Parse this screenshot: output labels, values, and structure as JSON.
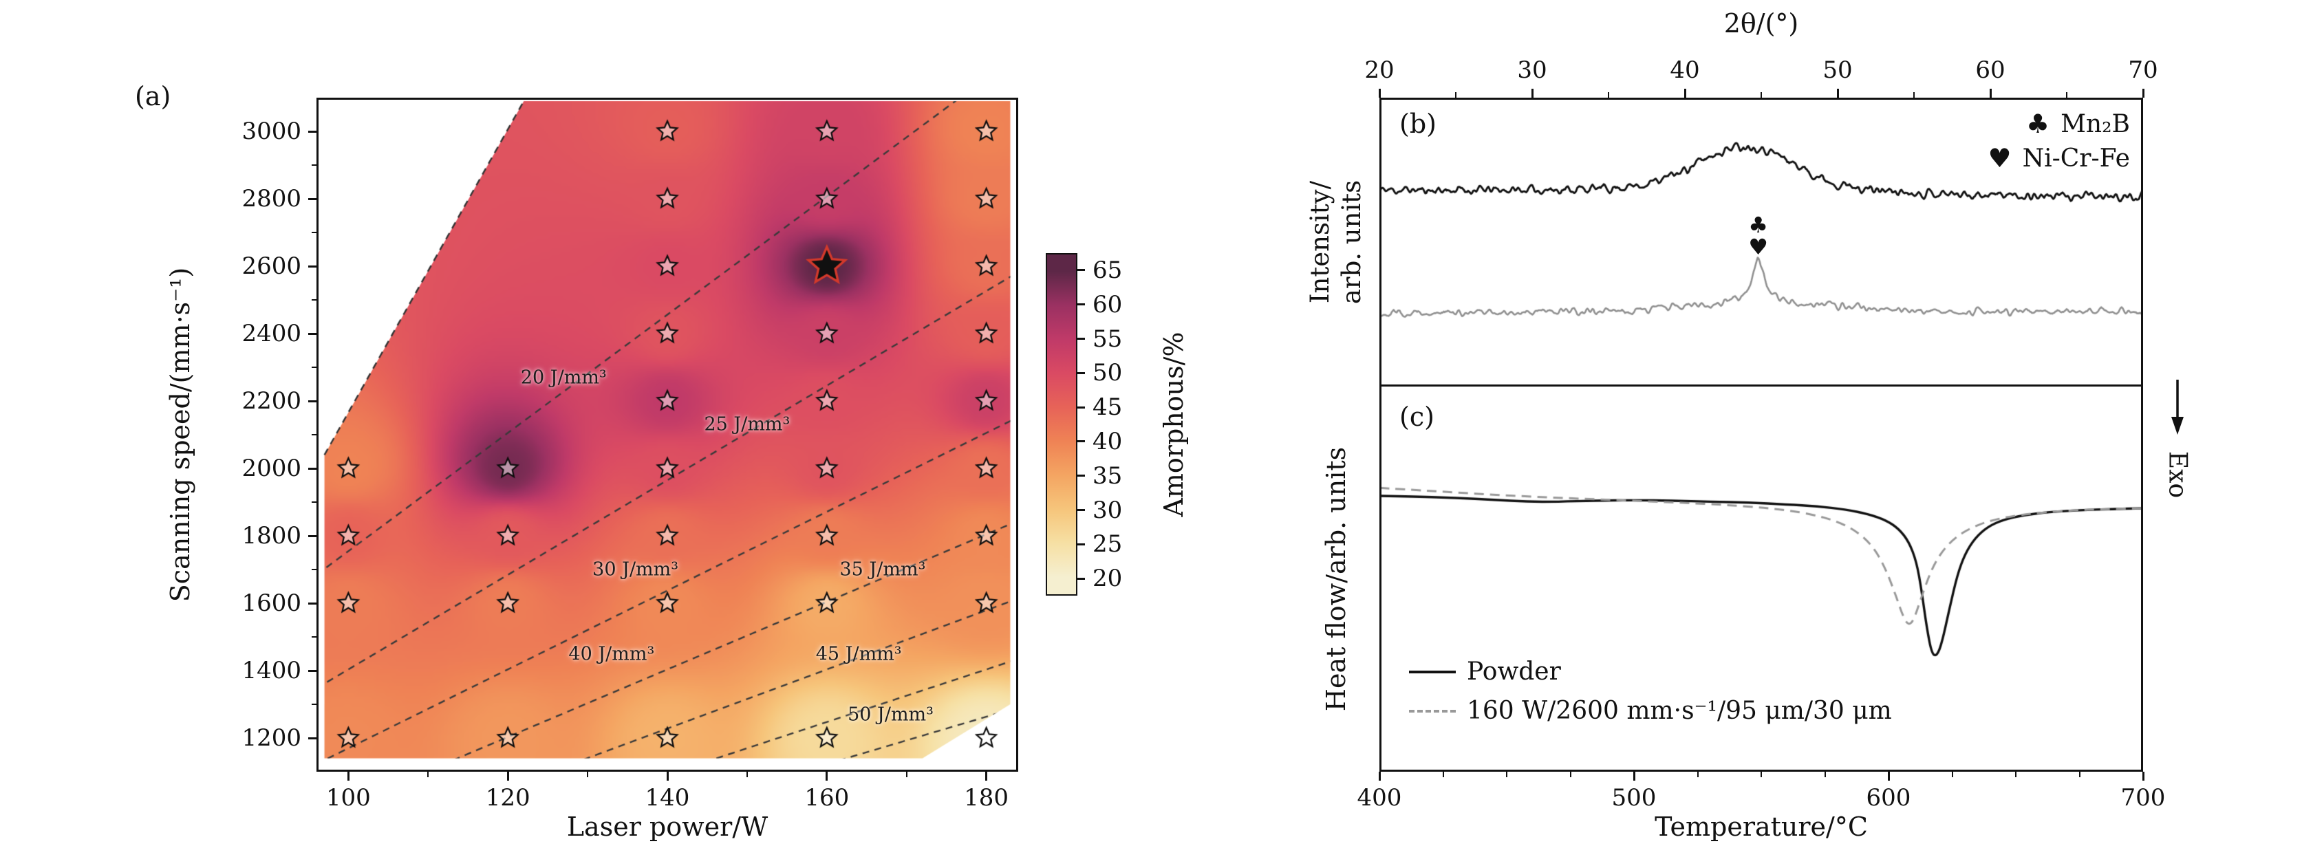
{
  "chart_data": [
    {
      "id": "a",
      "type": "heatmap",
      "tag": "(a)",
      "xlabel": "Laser power/W",
      "ylabel": "Scanning speed/(mm·s⁻¹)",
      "xlim": [
        96,
        184
      ],
      "ylim": [
        1100,
        3100
      ],
      "xticks": [
        100,
        120,
        140,
        160,
        180
      ],
      "yticks": [
        1200,
        1400,
        1600,
        1800,
        2000,
        2200,
        2400,
        2600,
        2800,
        3000
      ],
      "points_fields": [
        "laser_power_W",
        "scanning_speed_mm_per_s",
        "amorphous_pct"
      ],
      "points": [
        [
          100,
          2000,
          40
        ],
        [
          100,
          1800,
          45
        ],
        [
          100,
          1600,
          41
        ],
        [
          100,
          1200,
          39
        ],
        [
          120,
          2000,
          63
        ],
        [
          120,
          1800,
          47
        ],
        [
          120,
          1600,
          41
        ],
        [
          120,
          1200,
          37
        ],
        [
          140,
          3000,
          46
        ],
        [
          140,
          2800,
          48
        ],
        [
          140,
          2600,
          50
        ],
        [
          140,
          2400,
          48
        ],
        [
          140,
          2200,
          55
        ],
        [
          140,
          2000,
          49
        ],
        [
          140,
          1800,
          43
        ],
        [
          140,
          1600,
          39
        ],
        [
          140,
          1200,
          33
        ],
        [
          160,
          3000,
          52
        ],
        [
          160,
          2800,
          54
        ],
        [
          160,
          2600,
          65
        ],
        [
          160,
          2400,
          53
        ],
        [
          160,
          2200,
          49
        ],
        [
          160,
          2000,
          48
        ],
        [
          160,
          1800,
          41
        ],
        [
          160,
          1600,
          34
        ],
        [
          160,
          1200,
          26
        ],
        [
          180,
          3000,
          40
        ],
        [
          180,
          2800,
          41
        ],
        [
          180,
          2600,
          43
        ],
        [
          180,
          2400,
          46
        ],
        [
          180,
          2200,
          53
        ],
        [
          180,
          2000,
          43
        ],
        [
          180,
          1800,
          39
        ],
        [
          180,
          1600,
          38
        ],
        [
          180,
          1200,
          22
        ]
      ],
      "highlight": {
        "x": 160,
        "y": 2600
      },
      "hull": [
        [
          97,
          1140
        ],
        [
          97,
          2040
        ],
        [
          122,
          3090
        ],
        [
          183,
          3090
        ],
        [
          183,
          1300
        ],
        [
          172,
          1140
        ]
      ],
      "energy_coefficient": 350.877,
      "energy_density_lines": [
        {
          "value": 20,
          "label": "20 J/mm³",
          "label_x": 127,
          "label_y": 2270
        },
        {
          "value": 25,
          "label": "25 J/mm³",
          "label_x": 150,
          "label_y": 2130
        },
        {
          "value": 30,
          "label": "30 J/mm³",
          "label_x": 136,
          "label_y": 1700
        },
        {
          "value": 35,
          "label": "35 J/mm³",
          "label_x": 167,
          "label_y": 1700
        },
        {
          "value": 40,
          "label": "40 J/mm³",
          "label_x": 133,
          "label_y": 1450
        },
        {
          "value": 45,
          "label": "45 J/mm³",
          "label_x": 164,
          "label_y": 1450
        },
        {
          "value": 50,
          "label": "50 J/mm³",
          "label_x": 168,
          "label_y": 1270
        }
      ],
      "colorbar": {
        "label": "Amorphous/%",
        "ticks": [
          20,
          25,
          30,
          35,
          40,
          45,
          50,
          55,
          60,
          65
        ],
        "range": [
          17.5,
          67.5
        ],
        "colormap": [
          [
            20,
            "#f5efd0"
          ],
          [
            25,
            "#f6e0a4"
          ],
          [
            30,
            "#f6c57b"
          ],
          [
            35,
            "#f4a562"
          ],
          [
            40,
            "#ef8355"
          ],
          [
            45,
            "#e76358"
          ],
          [
            50,
            "#da4a63"
          ],
          [
            55,
            "#c03a68"
          ],
          [
            60,
            "#9b3162"
          ],
          [
            65,
            "#5d2747"
          ]
        ]
      }
    },
    {
      "id": "b",
      "type": "line",
      "tag": "(b)",
      "xlabel": "2θ/(°)",
      "ylabel_lines": [
        "Intensity/",
        "arb. units"
      ],
      "xlim": [
        20,
        70
      ],
      "xticks": [
        20,
        30,
        40,
        50,
        60,
        70
      ],
      "series": [
        {
          "color": "#111111",
          "baseline": 0.68,
          "slope": -0.0005,
          "gaussians": [
            {
              "center": 44,
              "sigma": 3.1,
              "amp": 0.145
            },
            {
              "center": 44,
              "sigma": 9,
              "amp": 0.02
            }
          ],
          "lorentzians": [],
          "noise_amp": 0.012,
          "seed": 11
        },
        {
          "color": "#909090",
          "baseline": 0.255,
          "slope": 0.0001,
          "gaussians": [
            {
              "center": 45,
              "sigma": 5,
              "amp": 0.035
            }
          ],
          "lorentzians": [
            {
              "center": 44.8,
              "gamma": 0.4,
              "amp": 0.155
            }
          ],
          "noise_amp": 0.01,
          "seed": 29
        }
      ],
      "legend": [
        {
          "symbol": "♣",
          "label": "Mn₂B"
        },
        {
          "symbol": "♥",
          "label": "Ni-Cr-Fe"
        }
      ],
      "peak_markers": [
        {
          "symbol": "♣",
          "x": 44.8,
          "y_frac": 0.56
        },
        {
          "symbol": "♥",
          "x": 44.8,
          "y_frac": 0.483
        }
      ]
    },
    {
      "id": "c",
      "type": "line",
      "tag": "(c)",
      "xlabel": "Temperature/°C",
      "ylabel": "Heat flow/arb. units",
      "xlim": [
        400,
        700
      ],
      "xticks": [
        400,
        500,
        600,
        700
      ],
      "annotation": {
        "text": "Exo",
        "arrow": "down"
      },
      "series": [
        {
          "name": "Powder",
          "style": "solid",
          "color": "#111111",
          "points": [
            [
              400,
              0.716
            ],
            [
              415,
              0.714
            ],
            [
              430,
              0.711
            ],
            [
              445,
              0.706
            ],
            [
              458,
              0.701
            ],
            [
              470,
              0.701
            ],
            [
              485,
              0.704
            ],
            [
              500,
              0.705
            ],
            [
              515,
              0.704
            ],
            [
              530,
              0.701
            ],
            [
              545,
              0.699
            ],
            [
              560,
              0.694
            ],
            [
              572,
              0.689
            ],
            [
              583,
              0.681
            ],
            [
              592,
              0.669
            ],
            [
              599,
              0.653
            ],
            [
              604,
              0.631
            ],
            [
              608,
              0.597
            ],
            [
              611,
              0.545
            ],
            [
              613,
              0.47
            ],
            [
              615,
              0.375
            ],
            [
              617,
              0.306
            ],
            [
              619,
              0.3
            ],
            [
              621,
              0.335
            ],
            [
              624,
              0.425
            ],
            [
              627,
              0.51
            ],
            [
              630,
              0.565
            ],
            [
              634,
              0.607
            ],
            [
              639,
              0.636
            ],
            [
              645,
              0.654
            ],
            [
              653,
              0.666
            ],
            [
              663,
              0.674
            ],
            [
              675,
              0.679
            ],
            [
              688,
              0.682
            ],
            [
              700,
              0.684
            ]
          ]
        },
        {
          "name": "160 W/2600 mm·s⁻¹/95 μm/30 μm",
          "style": "dashed",
          "color": "#999999",
          "points": [
            [
              400,
              0.737
            ],
            [
              415,
              0.731
            ],
            [
              430,
              0.725
            ],
            [
              445,
              0.719
            ],
            [
              460,
              0.714
            ],
            [
              475,
              0.71
            ],
            [
              490,
              0.706
            ],
            [
              505,
              0.702
            ],
            [
              520,
              0.698
            ],
            [
              535,
              0.693
            ],
            [
              548,
              0.687
            ],
            [
              560,
              0.679
            ],
            [
              570,
              0.668
            ],
            [
              579,
              0.652
            ],
            [
              587,
              0.627
            ],
            [
              594,
              0.585
            ],
            [
              599,
              0.525
            ],
            [
              603,
              0.455
            ],
            [
              606,
              0.398
            ],
            [
              608,
              0.38
            ],
            [
              610,
              0.395
            ],
            [
              613,
              0.455
            ],
            [
              617,
              0.527
            ],
            [
              621,
              0.572
            ],
            [
              626,
              0.607
            ],
            [
              632,
              0.632
            ],
            [
              639,
              0.65
            ],
            [
              647,
              0.662
            ],
            [
              657,
              0.671
            ],
            [
              668,
              0.677
            ],
            [
              681,
              0.681
            ],
            [
              700,
              0.684
            ]
          ]
        }
      ]
    }
  ]
}
